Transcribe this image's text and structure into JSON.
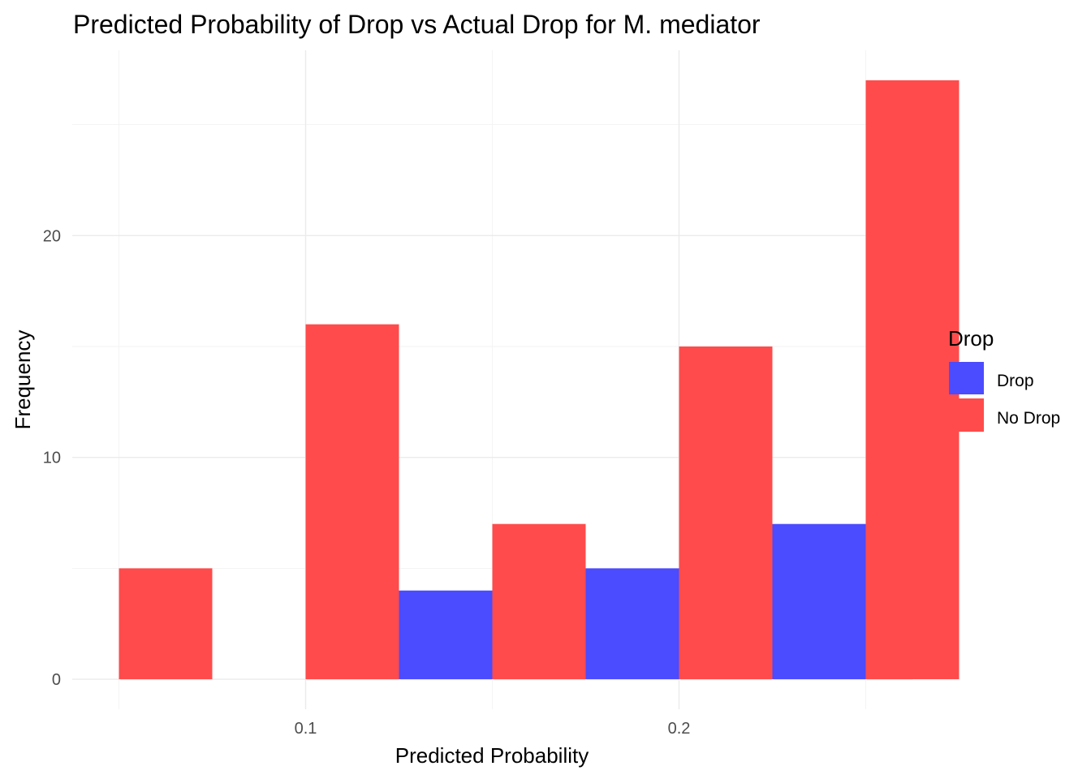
{
  "chart_data": {
    "type": "bar",
    "title": "Predicted Probability of Drop vs Actual Drop for M. mediator",
    "xlabel": "Predicted Probability",
    "ylabel": "Frequency",
    "xlim": [
      0.0375,
      0.2625
    ],
    "ylim": [
      -1.35,
      28.35
    ],
    "x_ticks": [
      0.1,
      0.2
    ],
    "x_tick_labels": [
      "0.1",
      "0.2"
    ],
    "y_ticks": [
      0,
      10,
      20
    ],
    "y_tick_labels": [
      "0",
      "10",
      "20"
    ],
    "bar_width": 0.025,
    "grid": true,
    "legend": {
      "title": "Drop",
      "position": "right"
    },
    "series": [
      {
        "name": "Drop",
        "color": "#4b4bff",
        "bars": [
          {
            "x_center": 0.1375,
            "value": 4
          },
          {
            "x_center": 0.1875,
            "value": 5
          },
          {
            "x_center": 0.2375,
            "value": 7
          }
        ]
      },
      {
        "name": "No Drop",
        "color": "#ff4b4b",
        "bars": [
          {
            "x_center": 0.0625,
            "value": 5
          },
          {
            "x_center": 0.1125,
            "value": 16
          },
          {
            "x_center": 0.1625,
            "value": 7
          },
          {
            "x_center": 0.2125,
            "value": 15
          },
          {
            "x_center": 0.2625,
            "value": 27
          }
        ]
      }
    ]
  }
}
